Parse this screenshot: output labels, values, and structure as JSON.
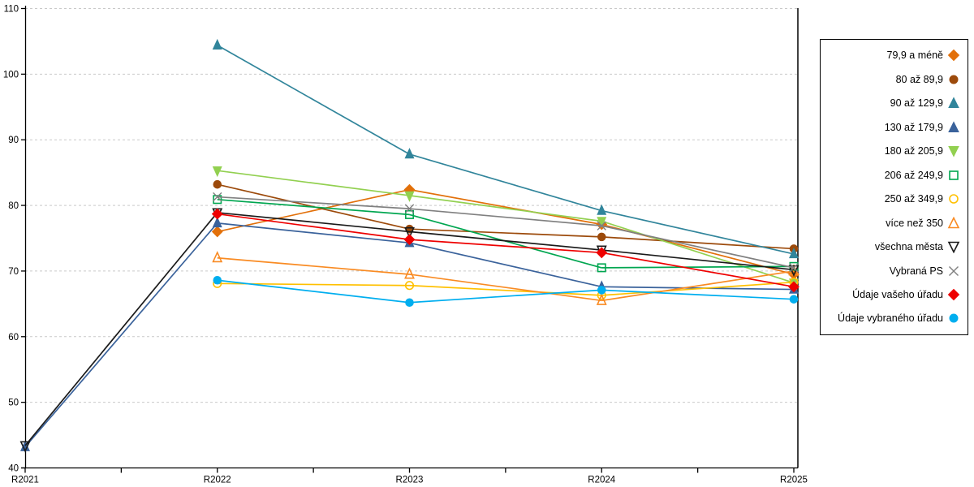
{
  "chart_data": {
    "type": "line",
    "categories": [
      "R2021",
      "R2022",
      "R2023",
      "R2024",
      "R2025"
    ],
    "title": "",
    "xlabel": "",
    "ylabel": "",
    "ylim": [
      40,
      110
    ],
    "y_ticks": [
      40,
      50,
      60,
      70,
      80,
      90,
      100,
      110
    ],
    "grid": {
      "horizontal": true,
      "style": "dashed",
      "color": "#c9c9c9"
    },
    "legend_position": "right",
    "axis_color": "#000000",
    "series": [
      {
        "name": "79,9 a méně",
        "color": "#E2700A",
        "marker": "diamond",
        "fill": "filled",
        "values": [
          null,
          76.0,
          82.4,
          77.1,
          69.5
        ]
      },
      {
        "name": "80 až 89,9",
        "color": "#9C4A0B",
        "marker": "circle",
        "fill": "filled",
        "values": [
          null,
          83.2,
          76.4,
          75.2,
          73.4
        ]
      },
      {
        "name": "90 až 129,9",
        "color": "#31859B",
        "marker": "triangle-up",
        "fill": "filled",
        "values": [
          null,
          104.4,
          87.8,
          79.2,
          72.6
        ]
      },
      {
        "name": "130 až 179,9",
        "color": "#3A629B",
        "marker": "triangle-up",
        "fill": "filled",
        "values": [
          43.2,
          77.3,
          74.3,
          67.6,
          67.2
        ]
      },
      {
        "name": "180 až 205,9",
        "color": "#92D050",
        "marker": "triangle-down",
        "fill": "filled",
        "values": [
          null,
          85.3,
          81.5,
          77.6,
          68.2
        ]
      },
      {
        "name": "206 až 249,9",
        "color": "#00A650",
        "marker": "square",
        "fill": "open",
        "values": [
          null,
          80.9,
          78.6,
          70.5,
          70.7
        ]
      },
      {
        "name": "250 až 349,9",
        "color": "#FFC000",
        "marker": "circle",
        "fill": "open",
        "values": [
          null,
          68.1,
          67.8,
          66.3,
          68.3
        ]
      },
      {
        "name": "více než 350",
        "color": "#F98B23",
        "marker": "triangle-up",
        "fill": "open",
        "values": [
          null,
          72.0,
          69.5,
          65.5,
          70.0
        ]
      },
      {
        "name": "všechna města",
        "color": "#1A1A1A",
        "marker": "triangle-down",
        "fill": "open",
        "values": [
          43.4,
          78.9,
          76.0,
          73.2,
          70.2
        ]
      },
      {
        "name": "Vybraná PS",
        "color": "#808080",
        "marker": "x",
        "fill": "open",
        "values": [
          null,
          81.3,
          79.5,
          76.9,
          70.5
        ]
      },
      {
        "name": "Údaje vašeho úřadu",
        "color": "#EE0000",
        "marker": "diamond",
        "fill": "filled",
        "values": [
          null,
          78.7,
          74.8,
          72.8,
          67.6
        ]
      },
      {
        "name": "Údaje vybraného úřadu",
        "color": "#00AEEF",
        "marker": "circle",
        "fill": "filled",
        "values": [
          null,
          68.6,
          65.2,
          67.1,
          65.7
        ]
      }
    ]
  }
}
